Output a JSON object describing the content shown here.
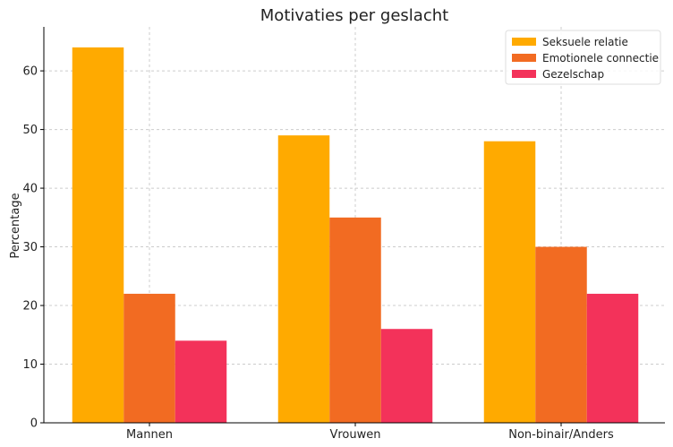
{
  "chart_data": {
    "type": "bar",
    "title": "Motivaties per geslacht",
    "xlabel": "",
    "ylabel": "Percentage",
    "categories": [
      "Mannen",
      "Vrouwen",
      "Non-binair/Anders"
    ],
    "series": [
      {
        "name": "Seksuele relatie",
        "values": [
          64,
          49,
          48
        ],
        "color": "#FFAA00"
      },
      {
        "name": "Emotionele connectie",
        "values": [
          22,
          35,
          30
        ],
        "color": "#F26B22"
      },
      {
        "name": "Gezelschap",
        "values": [
          14,
          16,
          22
        ],
        "color": "#F3325A"
      }
    ],
    "ylim": [
      0,
      67.5
    ],
    "yticks": [
      0,
      10,
      20,
      30,
      40,
      50,
      60
    ],
    "grid": true,
    "legend": "top-right"
  }
}
